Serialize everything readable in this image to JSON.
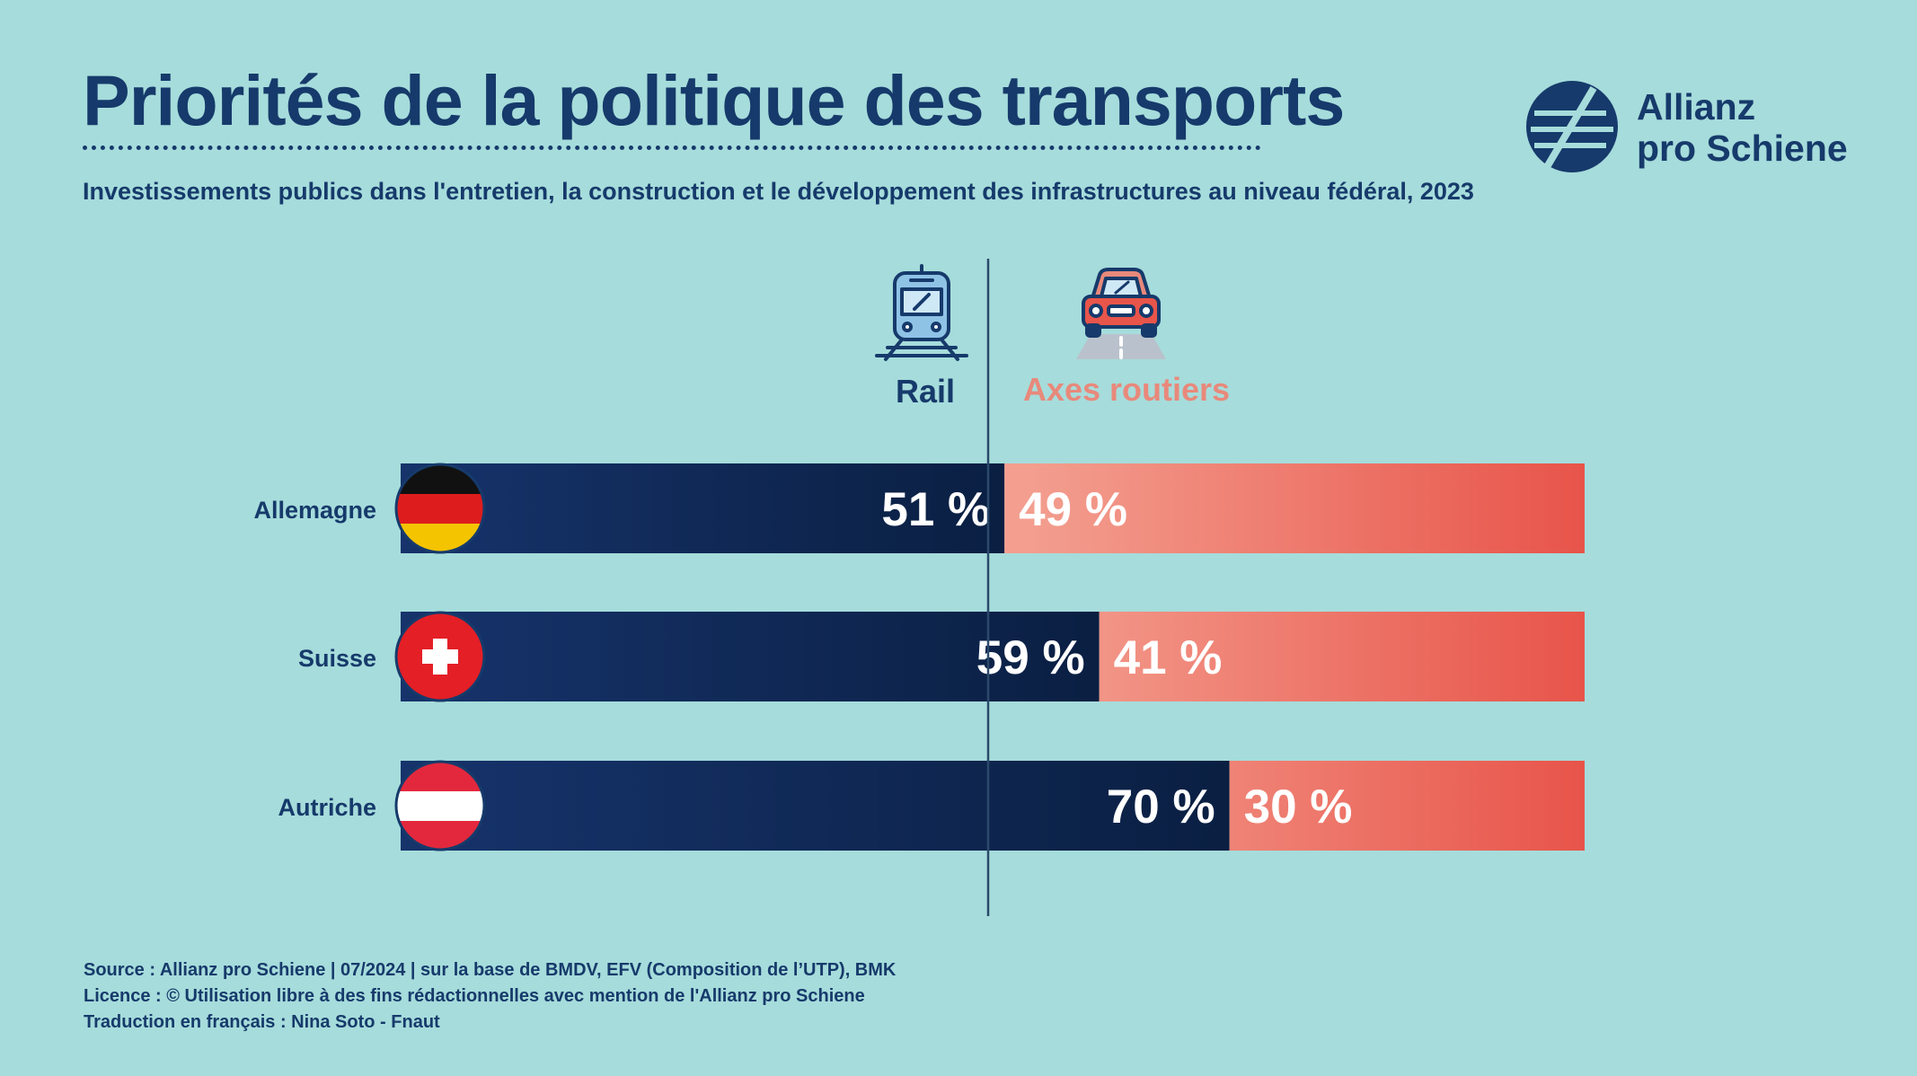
{
  "header": {
    "title": "Priorités de la politique des transports",
    "subtitle": "Investissements publics dans l'entretien, la construction et le développement des infrastructures au niveau fédéral, 2023"
  },
  "logo": {
    "line1": "Allianz",
    "line2": "pro Schiene"
  },
  "footer": {
    "source": "Source : Allianz pro Schiene | 07/2024 | sur la base de BMDV, EFV (Composition de l’UTP), BMK",
    "license": "Licence : © Utilisation libre à des fins rédactionnelles avec mention de l'Allianz pro Schiene",
    "translation": "Traduction en français : Nina Soto - Fnaut"
  },
  "colors": {
    "background": "#a6dcdb",
    "rail_dark": "#0c2349",
    "rail_mid": "#16336b",
    "road_light": "#f29d8e",
    "road_dark": "#e8554a",
    "text": "#163a6b",
    "road_label": "#e8897b"
  },
  "chart_data": {
    "type": "bar",
    "stacked": true,
    "orientation": "horizontal",
    "categories": [
      "Allemagne",
      "Suisse",
      "Autriche"
    ],
    "category_icons": [
      "flag-germany-icon",
      "flag-switzerland-icon",
      "flag-austria-icon"
    ],
    "series": [
      {
        "name": "Rail",
        "icon": "train-icon",
        "values": [
          51,
          59,
          70
        ],
        "labels": [
          "51 %",
          "59 %",
          "70 %"
        ]
      },
      {
        "name": "Axes routiers",
        "icon": "car-icon",
        "values": [
          49,
          41,
          30
        ],
        "labels": [
          "49 %",
          "41 %",
          "30 %"
        ]
      }
    ],
    "xlim": [
      0,
      100
    ],
    "reference_line": 50
  }
}
